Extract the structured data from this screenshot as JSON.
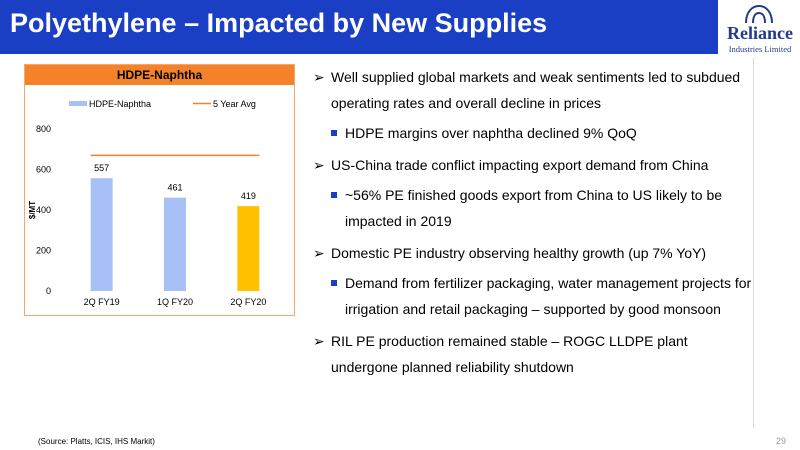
{
  "header": {
    "title": "Polyethylene – Impacted by New Supplies"
  },
  "logo": {
    "name": "Reliance",
    "subtitle": "Industries Limited"
  },
  "chart_data": {
    "type": "bar",
    "title": "HDPE-Naphtha",
    "categories": [
      "2Q FY19",
      "1Q FY20",
      "2Q FY20"
    ],
    "series": [
      {
        "name": "HDPE-Naphtha",
        "values": [
          557,
          461,
          419
        ]
      }
    ],
    "avg_line": {
      "name": "5 Year Avg",
      "value": 670
    },
    "ylabel": "$/MT",
    "ylim": [
      0,
      800
    ],
    "yticks": [
      0,
      200,
      400,
      600,
      800
    ],
    "legend": "top",
    "grid": false,
    "colors": {
      "bar": "#a7c0f5",
      "bar_highlight": "#ffc000",
      "avg_line": "#f4822a"
    }
  },
  "bullets": [
    {
      "level": 1,
      "text": "Well supplied global markets and weak sentiments led to subdued operating rates and overall decline in prices"
    },
    {
      "level": 2,
      "text": "HDPE margins over naphtha declined 9% QoQ"
    },
    {
      "level": 1,
      "text": "US-China trade conflict impacting export demand from China"
    },
    {
      "level": 2,
      "text": "~56% PE finished goods export from China to US likely to be impacted in 2019"
    },
    {
      "level": 1,
      "text": "Domestic PE industry observing healthy growth (up 7% YoY)"
    },
    {
      "level": 2,
      "text": "Demand from fertilizer packaging, water management projects for irrigation and retail packaging – supported by good monsoon"
    },
    {
      "level": 1,
      "text": "RIL PE production remained stable – ROGC LLDPE plant undergone planned reliability shutdown"
    }
  ],
  "footer": {
    "source": "(Source: Platts, ICIS, IHS Markit)",
    "page": "29"
  }
}
